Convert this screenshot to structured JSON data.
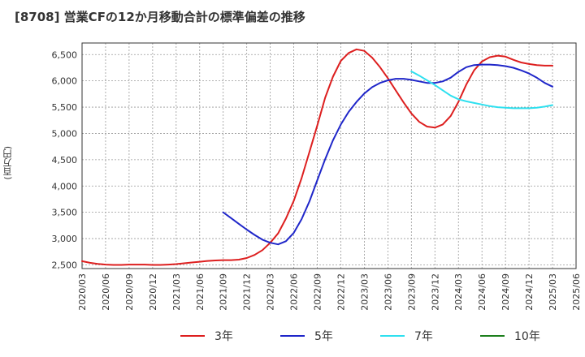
{
  "title": "[8708]  営業CFの12か月移動合計の標準偏差の推移",
  "colors": {
    "3年": "#dd1f1f",
    "5年": "#1f26c9",
    "7年": "#2fe0ef",
    "10年": "#1d7f1d"
  },
  "chart_data": {
    "type": "line",
    "title": "[8708]  営業CFの12か月移動合計の標準偏差の推移",
    "xlabel": "",
    "ylabel": "(百万円)",
    "ylim": [
      2430,
      6720
    ],
    "yticks": [
      2500,
      3000,
      3500,
      4000,
      4500,
      5000,
      5500,
      6000,
      6500
    ],
    "ytick_labels": [
      "2,500",
      "3,000",
      "3,500",
      "4,000",
      "4,500",
      "5,000",
      "5,500",
      "6,000",
      "6,500"
    ],
    "xticks": [
      "2020/03",
      "2020/06",
      "2020/09",
      "2020/12",
      "2021/03",
      "2021/06",
      "2021/09",
      "2021/12",
      "2022/03",
      "2022/06",
      "2022/09",
      "2022/12",
      "2023/03",
      "2023/06",
      "2023/09",
      "2023/12",
      "2024/03",
      "2024/06",
      "2024/09",
      "2024/12",
      "2025/03",
      "2025/06"
    ],
    "grid": true,
    "legend": "bottom",
    "series": [
      {
        "name": "3年",
        "points": [
          [
            "2020/03",
            2570
          ],
          [
            "2020/04",
            2540
          ],
          [
            "2020/05",
            2520
          ],
          [
            "2020/06",
            2505
          ],
          [
            "2020/07",
            2500
          ],
          [
            "2020/08",
            2500
          ],
          [
            "2020/09",
            2505
          ],
          [
            "2020/10",
            2505
          ],
          [
            "2020/11",
            2505
          ],
          [
            "2020/12",
            2500
          ],
          [
            "2021/01",
            2500
          ],
          [
            "2021/02",
            2505
          ],
          [
            "2021/03",
            2515
          ],
          [
            "2021/04",
            2530
          ],
          [
            "2021/05",
            2545
          ],
          [
            "2021/06",
            2560
          ],
          [
            "2021/07",
            2575
          ],
          [
            "2021/08",
            2585
          ],
          [
            "2021/09",
            2590
          ],
          [
            "2021/10",
            2590
          ],
          [
            "2021/11",
            2600
          ],
          [
            "2021/12",
            2630
          ],
          [
            "2022/01",
            2690
          ],
          [
            "2022/02",
            2780
          ],
          [
            "2022/03",
            2920
          ],
          [
            "2022/04",
            3100
          ],
          [
            "2022/05",
            3380
          ],
          [
            "2022/06",
            3720
          ],
          [
            "2022/07",
            4150
          ],
          [
            "2022/08",
            4650
          ],
          [
            "2022/09",
            5150
          ],
          [
            "2022/10",
            5680
          ],
          [
            "2022/11",
            6080
          ],
          [
            "2022/12",
            6380
          ],
          [
            "2023/01",
            6530
          ],
          [
            "2023/02",
            6600
          ],
          [
            "2023/03",
            6570
          ],
          [
            "2023/04",
            6440
          ],
          [
            "2023/05",
            6260
          ],
          [
            "2023/06",
            6050
          ],
          [
            "2023/07",
            5820
          ],
          [
            "2023/08",
            5590
          ],
          [
            "2023/09",
            5380
          ],
          [
            "2023/10",
            5220
          ],
          [
            "2023/11",
            5130
          ],
          [
            "2023/12",
            5110
          ],
          [
            "2024/01",
            5170
          ],
          [
            "2024/02",
            5330
          ],
          [
            "2024/03",
            5600
          ],
          [
            "2024/04",
            5930
          ],
          [
            "2024/05",
            6200
          ],
          [
            "2024/06",
            6370
          ],
          [
            "2024/07",
            6450
          ],
          [
            "2024/08",
            6480
          ],
          [
            "2024/09",
            6460
          ],
          [
            "2024/10",
            6400
          ],
          [
            "2024/11",
            6350
          ],
          [
            "2024/12",
            6320
          ],
          [
            "2025/01",
            6300
          ],
          [
            "2025/02",
            6290
          ],
          [
            "2025/03",
            6290
          ]
        ]
      },
      {
        "name": "5年",
        "points": [
          [
            "2021/09",
            3500
          ],
          [
            "2021/10",
            3390
          ],
          [
            "2021/11",
            3280
          ],
          [
            "2021/12",
            3170
          ],
          [
            "2022/01",
            3070
          ],
          [
            "2022/02",
            2980
          ],
          [
            "2022/03",
            2920
          ],
          [
            "2022/04",
            2890
          ],
          [
            "2022/05",
            2950
          ],
          [
            "2022/06",
            3110
          ],
          [
            "2022/07",
            3370
          ],
          [
            "2022/08",
            3710
          ],
          [
            "2022/09",
            4110
          ],
          [
            "2022/10",
            4510
          ],
          [
            "2022/11",
            4870
          ],
          [
            "2022/12",
            5170
          ],
          [
            "2023/01",
            5410
          ],
          [
            "2023/02",
            5600
          ],
          [
            "2023/03",
            5760
          ],
          [
            "2023/04",
            5880
          ],
          [
            "2023/05",
            5960
          ],
          [
            "2023/06",
            6010
          ],
          [
            "2023/07",
            6040
          ],
          [
            "2023/08",
            6040
          ],
          [
            "2023/09",
            6020
          ],
          [
            "2023/10",
            5990
          ],
          [
            "2023/11",
            5960
          ],
          [
            "2023/12",
            5960
          ],
          [
            "2024/01",
            5990
          ],
          [
            "2024/02",
            6060
          ],
          [
            "2024/03",
            6170
          ],
          [
            "2024/04",
            6260
          ],
          [
            "2024/05",
            6300
          ],
          [
            "2024/06",
            6310
          ],
          [
            "2024/07",
            6310
          ],
          [
            "2024/08",
            6300
          ],
          [
            "2024/09",
            6280
          ],
          [
            "2024/10",
            6250
          ],
          [
            "2024/11",
            6200
          ],
          [
            "2024/12",
            6140
          ],
          [
            "2025/01",
            6060
          ],
          [
            "2025/02",
            5960
          ],
          [
            "2025/03",
            5890
          ]
        ]
      },
      {
        "name": "7年",
        "points": [
          [
            "2023/09",
            6180
          ],
          [
            "2023/10",
            6100
          ],
          [
            "2023/11",
            6010
          ],
          [
            "2023/12",
            5920
          ],
          [
            "2024/01",
            5820
          ],
          [
            "2024/02",
            5720
          ],
          [
            "2024/03",
            5650
          ],
          [
            "2024/04",
            5610
          ],
          [
            "2024/05",
            5580
          ],
          [
            "2024/06",
            5550
          ],
          [
            "2024/07",
            5520
          ],
          [
            "2024/08",
            5500
          ],
          [
            "2024/09",
            5490
          ],
          [
            "2024/10",
            5480
          ],
          [
            "2024/11",
            5480
          ],
          [
            "2024/12",
            5480
          ],
          [
            "2025/01",
            5490
          ],
          [
            "2025/02",
            5510
          ],
          [
            "2025/03",
            5540
          ]
        ]
      },
      {
        "name": "10年",
        "points": []
      }
    ]
  }
}
